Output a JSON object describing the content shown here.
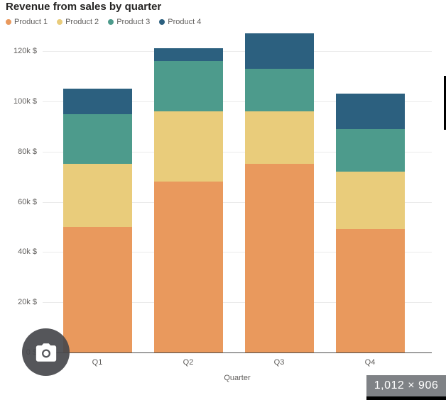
{
  "title": "Revenue from sales by quarter",
  "chart_data": {
    "type": "bar",
    "stacked": true,
    "title": "Revenue from sales by quarter",
    "categories": [
      "Q1",
      "Q2",
      "Q3",
      "Q4"
    ],
    "series": [
      {
        "name": "Product 1",
        "color": "#E9995D",
        "values": [
          50,
          68,
          75,
          49
        ]
      },
      {
        "name": "Product 2",
        "color": "#E9CC7B",
        "values": [
          25,
          28,
          21,
          23
        ]
      },
      {
        "name": "Product 3",
        "color": "#4D9B8C",
        "values": [
          20,
          20,
          17,
          17
        ]
      },
      {
        "name": "Product 4",
        "color": "#2C607F",
        "values": [
          10,
          5,
          14,
          14
        ]
      }
    ],
    "totals": [
      105,
      121,
      127,
      103
    ],
    "xlabel": "Quarter",
    "ylabel": "",
    "ylim": [
      0,
      130
    ],
    "yticks": [
      0,
      20,
      40,
      60,
      80,
      100,
      120
    ],
    "ytick_labels": [
      "0 $",
      "20k $",
      "40k $",
      "60k $",
      "80k $",
      "100k $",
      "120k $"
    ],
    "legend_position": "top-left",
    "grid": true,
    "units": "k $"
  },
  "overlays": {
    "dimension_badge": "1,012 × 906",
    "camera_button": "lens-camera"
  }
}
